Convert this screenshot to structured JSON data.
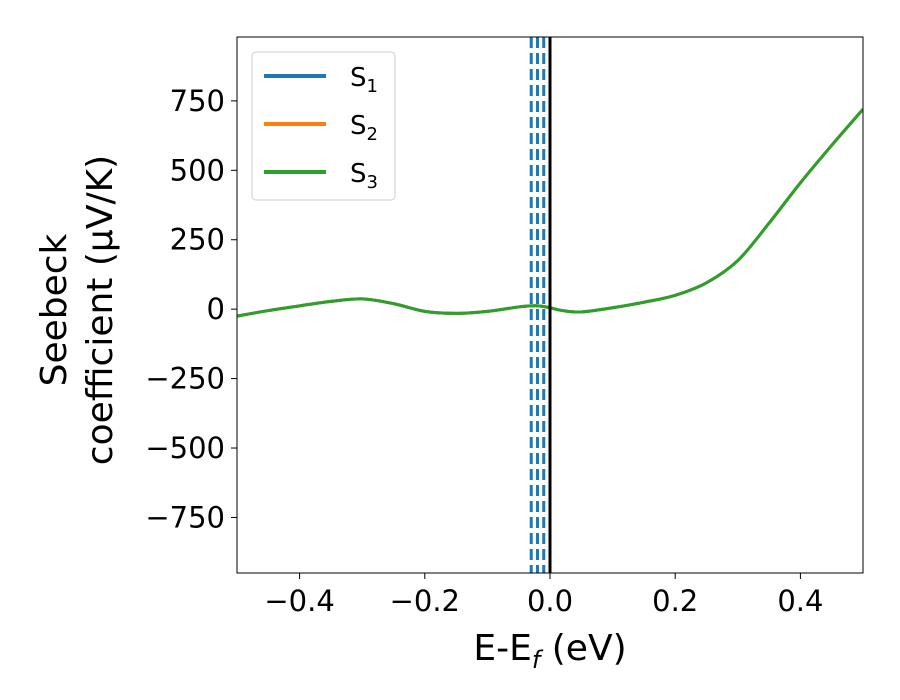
{
  "chart_data": {
    "type": "line",
    "xlabel": "E-E",
    "xlabel_sub": "f",
    "xlabel_unit": " (eV)",
    "ylabel_line1": "Seebeck",
    "ylabel_line2": "coefficient  (μV/K)",
    "xlim": [
      -0.5,
      0.5
    ],
    "ylim": [
      -950,
      980
    ],
    "xticks": [
      -0.4,
      -0.2,
      0.0,
      0.2,
      0.4
    ],
    "xtick_labels": [
      "−0.4",
      "−0.2",
      "0.0",
      "0.2",
      "0.4"
    ],
    "yticks": [
      750,
      500,
      250,
      0,
      -250,
      -500,
      -750
    ],
    "ytick_labels": [
      "750",
      "500",
      "250",
      "0",
      "−250",
      "−500",
      "−750"
    ],
    "grid": false,
    "legend_position": "top-left",
    "vlines": {
      "dashed": {
        "x": [
          -0.03,
          -0.02,
          -0.01
        ],
        "color": "#1f77b4"
      },
      "solid": {
        "x": [
          0.0
        ],
        "color": "#000000"
      }
    },
    "series": [
      {
        "name": "S",
        "sub": "1",
        "color": "#1f77b4"
      },
      {
        "name": "S",
        "sub": "2",
        "color": "#ff7f0e"
      },
      {
        "name": "S",
        "sub": "3",
        "color": "#2ca02c"
      }
    ],
    "x": [
      -0.5,
      -0.45,
      -0.4,
      -0.35,
      -0.3,
      -0.25,
      -0.2,
      -0.15,
      -0.1,
      -0.05,
      -0.02,
      0.0,
      0.02,
      0.05,
      0.1,
      0.15,
      0.2,
      0.25,
      0.3,
      0.35,
      0.4,
      0.45,
      0.5
    ],
    "y": [
      -25,
      -5,
      12,
      28,
      37,
      20,
      -8,
      -15,
      -8,
      8,
      12,
      5,
      -5,
      -10,
      5,
      25,
      50,
      95,
      175,
      310,
      455,
      590,
      720
    ]
  }
}
